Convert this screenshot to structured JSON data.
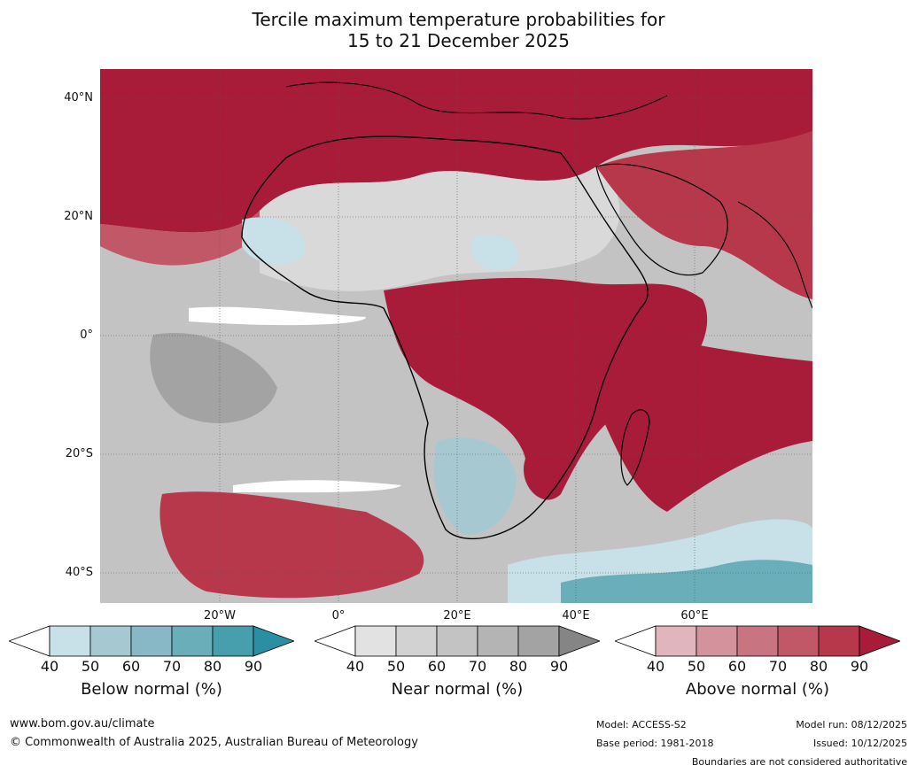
{
  "title_line1": "Tercile maximum temperature probabilities for",
  "title_line2": "15 to 21 December 2025",
  "lat_labels": [
    "40°N",
    "20°N",
    "0°",
    "20°S",
    "40°S"
  ],
  "lon_labels": [
    "20°W",
    "0°",
    "20°E",
    "40°E",
    "60°E"
  ],
  "legends": [
    {
      "title": "Below normal (%)",
      "ticks": [
        "40",
        "50",
        "60",
        "70",
        "80",
        "90"
      ],
      "colors": [
        "#c8e0e7",
        "#a6c9d1",
        "#88b8c5",
        "#6aaeba",
        "#479ead",
        "#2b8fa3"
      ]
    },
    {
      "title": "Near normal (%)",
      "ticks": [
        "40",
        "50",
        "60",
        "70",
        "80",
        "90"
      ],
      "colors": [
        "#e2e2e2",
        "#d2d2d2",
        "#c3c3c3",
        "#b4b4b4",
        "#a3a3a3",
        "#858585"
      ]
    },
    {
      "title": "Above normal (%)",
      "ticks": [
        "40",
        "50",
        "60",
        "70",
        "80",
        "90"
      ],
      "colors": [
        "#e0b5bb",
        "#d3939d",
        "#c97581",
        "#c15868",
        "#b8384b",
        "#a81c3a"
      ]
    }
  ],
  "footer": {
    "url": "www.bom.gov.au/climate",
    "copyright": "© Commonwealth of Australia 2025, Australian Bureau of Meteorology",
    "model": "Model: ACCESS-S2",
    "base_period": "Base period: 1981-2018",
    "model_run": "Model run: 08/12/2025",
    "issued": "Issued: 10/12/2025",
    "disclaimer": "Boundaries are not considered authoritative"
  }
}
